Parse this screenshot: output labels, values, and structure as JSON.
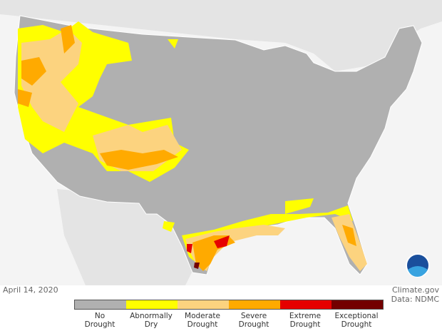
{
  "date": "April 14, 2020",
  "credit": {
    "source": "Climate.gov",
    "data": "Data: NDMC"
  },
  "logo": "NOAA",
  "legend": [
    {
      "line1": "No",
      "line2": "Drought",
      "color": "#b0b0b0"
    },
    {
      "line1": "Abnormally",
      "line2": "Dry",
      "color": "#ffff00"
    },
    {
      "line1": "Moderate",
      "line2": "Drought",
      "color": "#fcd37f"
    },
    {
      "line1": "Severe",
      "line2": "Drought",
      "color": "#ffaa00"
    },
    {
      "line1": "Extreme",
      "line2": "Drought",
      "color": "#e60000"
    },
    {
      "line1": "Exceptional",
      "line2": "Drought",
      "color": "#730000"
    }
  ]
}
